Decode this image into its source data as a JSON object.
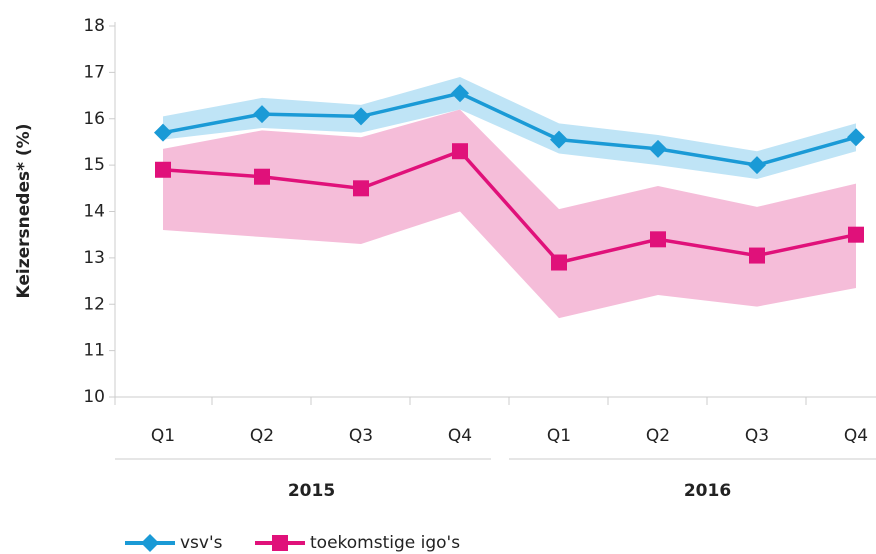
{
  "chart_data": {
    "type": "line",
    "y_label": "Keizersnedes* (%)",
    "categories": [
      "Q1",
      "Q2",
      "Q3",
      "Q4",
      "Q1",
      "Q2",
      "Q3",
      "Q4"
    ],
    "groups": [
      "2015",
      "2016"
    ],
    "ylim": [
      10,
      18
    ],
    "yticks": [
      10,
      11,
      12,
      13,
      14,
      15,
      16,
      17,
      18
    ],
    "series": [
      {
        "name": "vsv's",
        "color": "#1a9ad6",
        "band_color": "#bfe4f6",
        "marker": "diamond",
        "values": [
          15.7,
          16.1,
          16.05,
          16.55,
          15.55,
          15.35,
          15.0,
          15.6
        ],
        "upper": [
          16.05,
          16.45,
          16.3,
          16.9,
          15.9,
          15.65,
          15.3,
          15.9
        ],
        "lower": [
          15.55,
          15.8,
          15.7,
          16.2,
          15.25,
          15.0,
          14.7,
          15.3
        ]
      },
      {
        "name": "toekomstige igo's",
        "color": "#e0117a",
        "band_color": "#f5bdd9",
        "marker": "square",
        "values": [
          14.9,
          14.75,
          14.5,
          15.3,
          12.9,
          13.4,
          13.05,
          13.5
        ],
        "upper": [
          15.35,
          15.75,
          15.6,
          16.2,
          14.05,
          14.55,
          14.1,
          14.6
        ],
        "lower": [
          13.6,
          13.45,
          13.3,
          14.0,
          11.7,
          12.2,
          11.95,
          12.35
        ]
      }
    ]
  }
}
